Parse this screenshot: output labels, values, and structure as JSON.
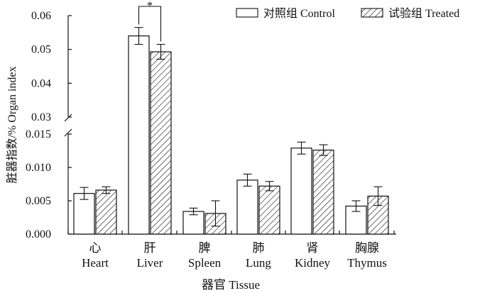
{
  "chart_data": {
    "type": "bar",
    "axis_break": true,
    "ylabel": "脏器指数/% Organ index",
    "xlabel": "器官 Tissue",
    "categories": [
      {
        "cn": "心",
        "en": "Heart"
      },
      {
        "cn": "肝",
        "en": "Liver"
      },
      {
        "cn": "脾",
        "en": "Spleen"
      },
      {
        "cn": "肺",
        "en": "Lung"
      },
      {
        "cn": "肾",
        "en": "Kidney"
      },
      {
        "cn": "胸腺",
        "en": "Thymus"
      }
    ],
    "lower_axis": {
      "ylim": [
        0,
        0.015
      ],
      "ticks": [
        "0.000",
        "0.005",
        "0.010",
        "0.015"
      ]
    },
    "upper_axis": {
      "ylim": [
        0.03,
        0.06
      ],
      "ticks": [
        "0.03",
        "0.04",
        "0.05",
        "0.06"
      ]
    },
    "series": [
      {
        "name": "对照组 Control",
        "pattern": "plain",
        "values": [
          0.0061,
          0.054,
          0.0034,
          0.0081,
          0.0129,
          0.0042
        ],
        "errors": [
          0.0009,
          0.0025,
          0.0005,
          0.0009,
          0.0009,
          0.0008
        ]
      },
      {
        "name": "试验组 Treated",
        "pattern": "hatched",
        "values": [
          0.0066,
          0.0493,
          0.0031,
          0.0072,
          0.0126,
          0.0057
        ],
        "errors": [
          0.0005,
          0.0022,
          0.0019,
          0.0007,
          0.0008,
          0.0014
        ]
      }
    ],
    "annotations": [
      {
        "text": "*",
        "between": "Liver"
      }
    ],
    "legend": "top-right"
  }
}
